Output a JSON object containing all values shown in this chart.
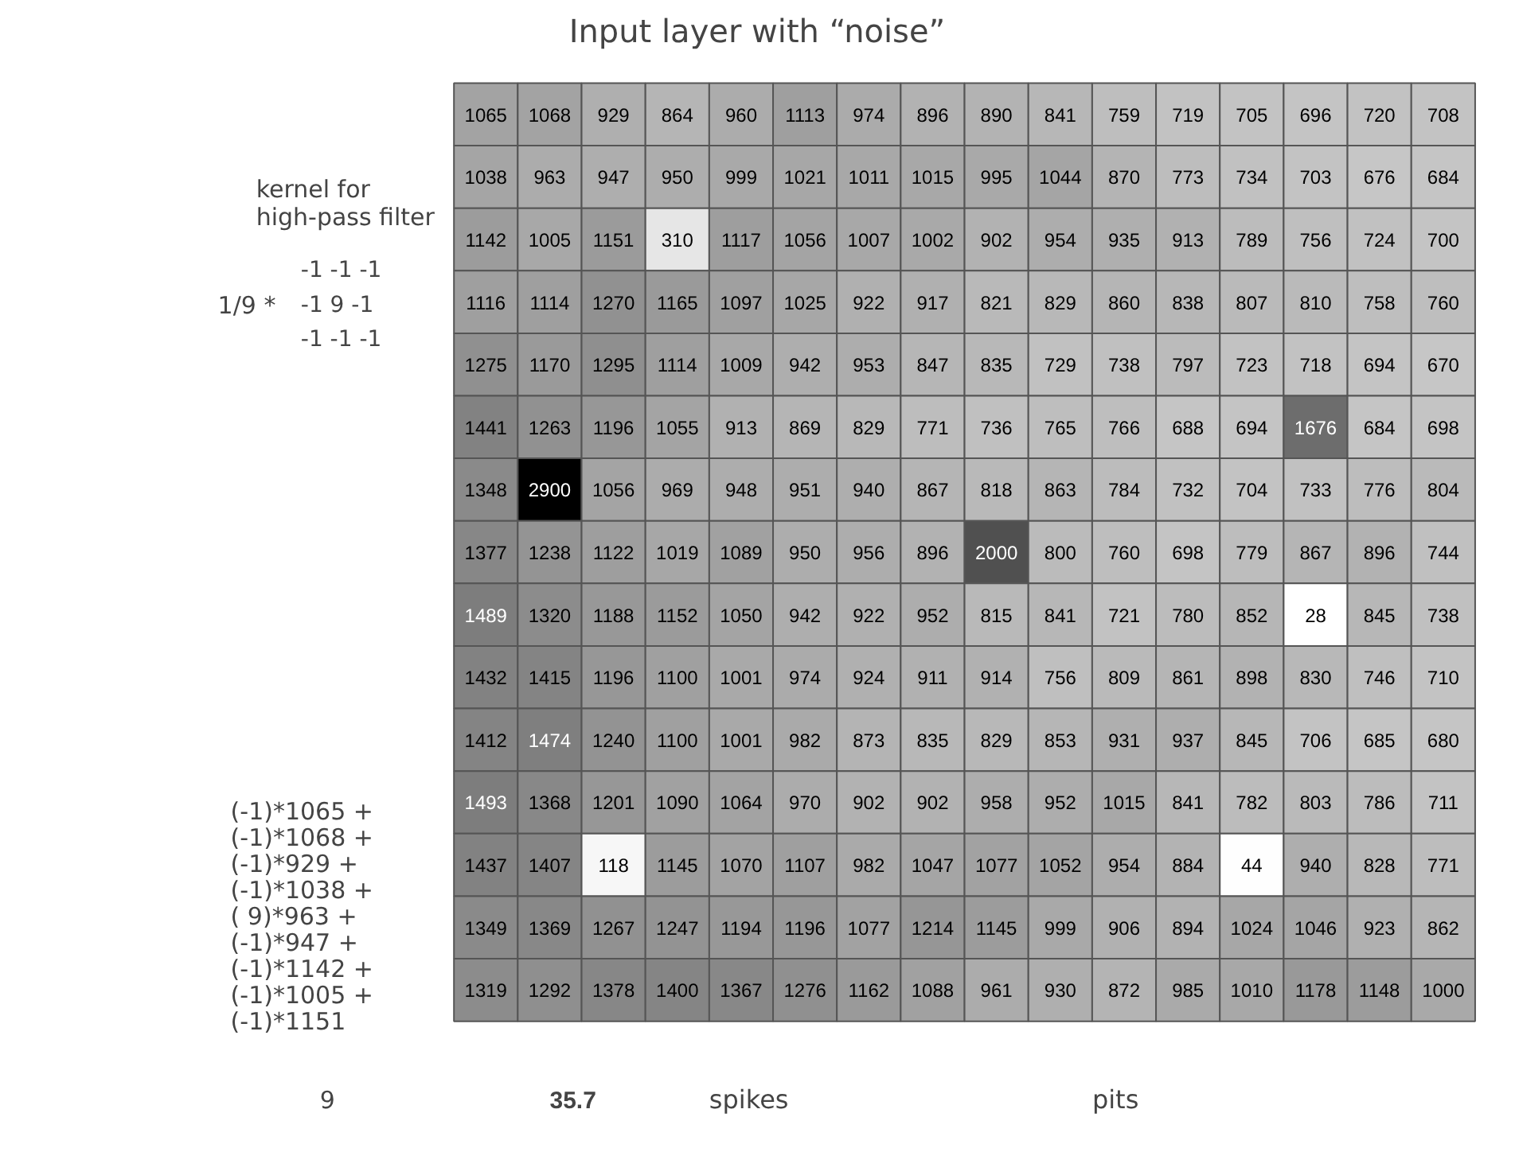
{
  "chart_data": {
    "type": "heatmap",
    "title": "Input layer with “noise”",
    "categories": [
      null,
      null,
      null,
      null,
      null,
      null,
      null,
      null,
      null,
      null,
      null,
      null,
      null,
      null,
      null,
      null
    ],
    "y_categories": [
      null,
      null,
      null,
      null,
      null,
      null,
      null,
      null,
      null,
      null,
      null,
      null,
      null,
      null,
      null
    ],
    "cells": [
      [
        1065,
        1068,
        929,
        864,
        960,
        1113,
        974,
        896,
        890,
        841,
        759,
        719,
        705,
        696,
        720,
        708
      ],
      [
        1038,
        963,
        947,
        950,
        999,
        1021,
        1011,
        1015,
        995,
        1044,
        870,
        773,
        734,
        703,
        676,
        684
      ],
      [
        1142,
        1005,
        1151,
        310,
        1117,
        1056,
        1007,
        1002,
        902,
        954,
        935,
        913,
        789,
        756,
        724,
        700
      ],
      [
        1116,
        1114,
        1270,
        1165,
        1097,
        1025,
        922,
        917,
        821,
        829,
        860,
        838,
        807,
        810,
        758,
        760
      ],
      [
        1275,
        1170,
        1295,
        1114,
        1009,
        942,
        953,
        847,
        835,
        729,
        738,
        797,
        723,
        718,
        694,
        670
      ],
      [
        1441,
        1263,
        1196,
        1055,
        913,
        869,
        829,
        771,
        736,
        765,
        766,
        688,
        694,
        1676,
        684,
        698
      ],
      [
        1348,
        2900,
        1056,
        969,
        948,
        951,
        940,
        867,
        818,
        863,
        784,
        732,
        704,
        733,
        776,
        804
      ],
      [
        1377,
        1238,
        1122,
        1019,
        1089,
        950,
        956,
        896,
        2000,
        800,
        760,
        698,
        779,
        867,
        896,
        744
      ],
      [
        1489,
        1320,
        1188,
        1152,
        1050,
        942,
        922,
        952,
        815,
        841,
        721,
        780,
        852,
        28,
        845,
        738
      ],
      [
        1432,
        1415,
        1196,
        1100,
        1001,
        974,
        924,
        911,
        914,
        756,
        809,
        861,
        898,
        830,
        746,
        710
      ],
      [
        1412,
        1474,
        1240,
        1100,
        1001,
        982,
        873,
        835,
        829,
        853,
        931,
        937,
        845,
        706,
        685,
        680
      ],
      [
        1493,
        1368,
        1201,
        1090,
        1064,
        970,
        902,
        902,
        958,
        952,
        1015,
        841,
        782,
        803,
        786,
        711
      ],
      [
        1437,
        1407,
        118,
        1145,
        1070,
        1107,
        982,
        1047,
        1077,
        1052,
        954,
        884,
        44,
        940,
        828,
        771
      ],
      [
        1349,
        1369,
        1267,
        1247,
        1194,
        1196,
        1077,
        1214,
        1145,
        999,
        906,
        894,
        1024,
        1046,
        923,
        862
      ],
      [
        1319,
        1292,
        1378,
        1400,
        1367,
        1276,
        1162,
        1088,
        961,
        930,
        872,
        985,
        1010,
        1178,
        1148,
        1000
      ]
    ],
    "data_labels": true,
    "annotations": [
      "kernel for",
      "high-pass filter",
      "1/9 *",
      "-1  -1  -1",
      "-1   9  -1",
      "-1  -1  -1",
      "(-1)*1065 +",
      "(-1)*1068 +",
      "(-1)*929 +",
      "(-1)*1038 +",
      "( 9)*963 +",
      "(-1)*947 +",
      "(-1)*1142 +",
      "(-1)*1005 +",
      "(-1)*1151",
      "9",
      "35.7",
      "spikes",
      "pits"
    ]
  }
}
